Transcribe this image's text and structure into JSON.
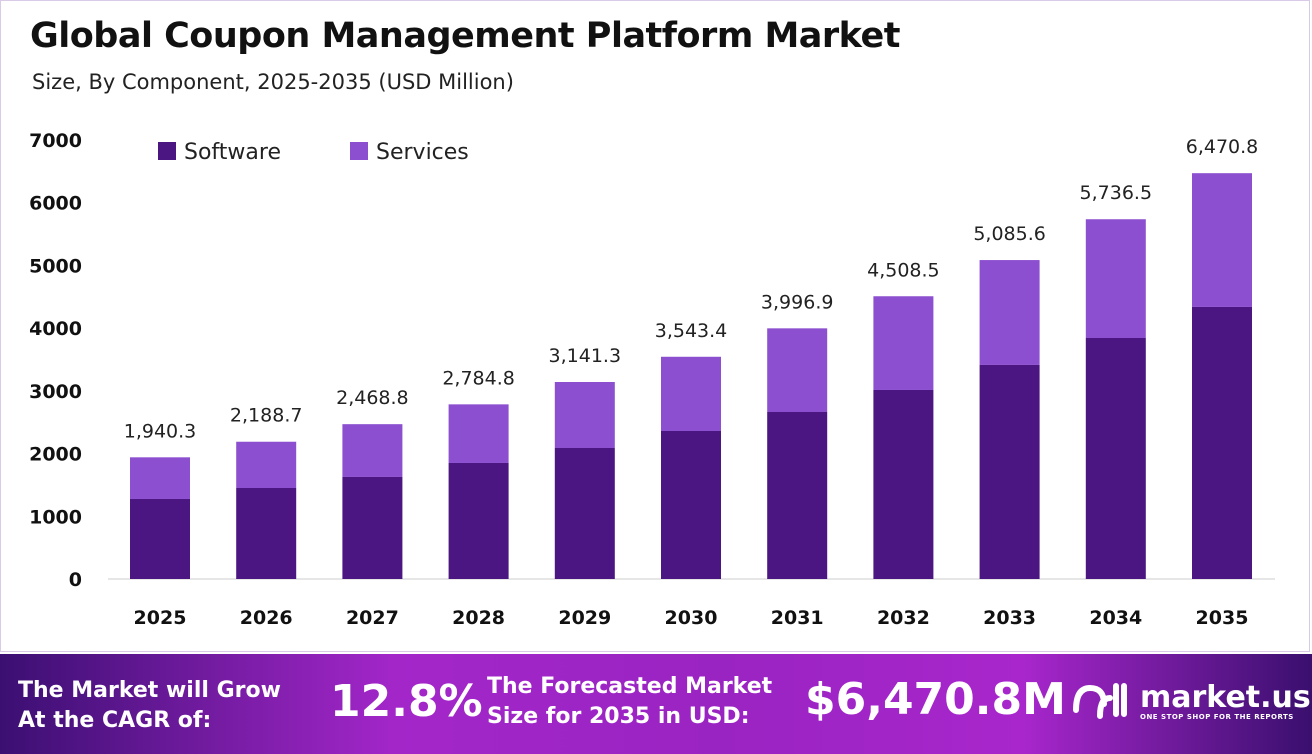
{
  "chart_data": {
    "type": "bar",
    "stacked": true,
    "title": "Global Coupon Management Platform Market",
    "subtitle": "Size, By Component, 2025-2035 (USD Million)",
    "categories": [
      "2025",
      "2026",
      "2027",
      "2028",
      "2029",
      "2030",
      "2031",
      "2032",
      "2033",
      "2034",
      "2035"
    ],
    "series": [
      {
        "name": "Software",
        "color": "#4b1682",
        "values": [
          1276,
          1451,
          1627,
          1850,
          2089,
          2360,
          2663,
          3014,
          3413,
          3843,
          4338
        ]
      },
      {
        "name": "Services",
        "color": "#8b4fcf",
        "values": [
          664.3,
          737.7,
          841.8,
          934.8,
          1052.3,
          1183.4,
          1333.9,
          1494.5,
          1672.6,
          1893.5,
          2132.8
        ]
      }
    ],
    "totals": [
      "1,940.3",
      "2,188.7",
      "2,468.8",
      "2,784.8",
      "3,141.3",
      "3,543.4",
      "3,996.9",
      "4,508.5",
      "5,085.6",
      "5,736.5",
      "6,470.8"
    ],
    "ylim": [
      0,
      7000
    ],
    "yticks": [
      "0",
      "1000",
      "2000",
      "3000",
      "4000",
      "5000",
      "6000",
      "7000"
    ],
    "grid": false,
    "legend": "top-left"
  },
  "banner": {
    "cagr_label_line1": "The Market will Grow",
    "cagr_label_line2": "At the CAGR of:",
    "cagr_value": "12.8%",
    "forecast_label_line1": "The Forecasted Market",
    "forecast_label_line2": "Size for 2035 in USD:",
    "forecast_value": "$6,470.8M",
    "logo_text": "market.us",
    "logo_tagline": "ONE STOP SHOP FOR THE REPORTS"
  }
}
